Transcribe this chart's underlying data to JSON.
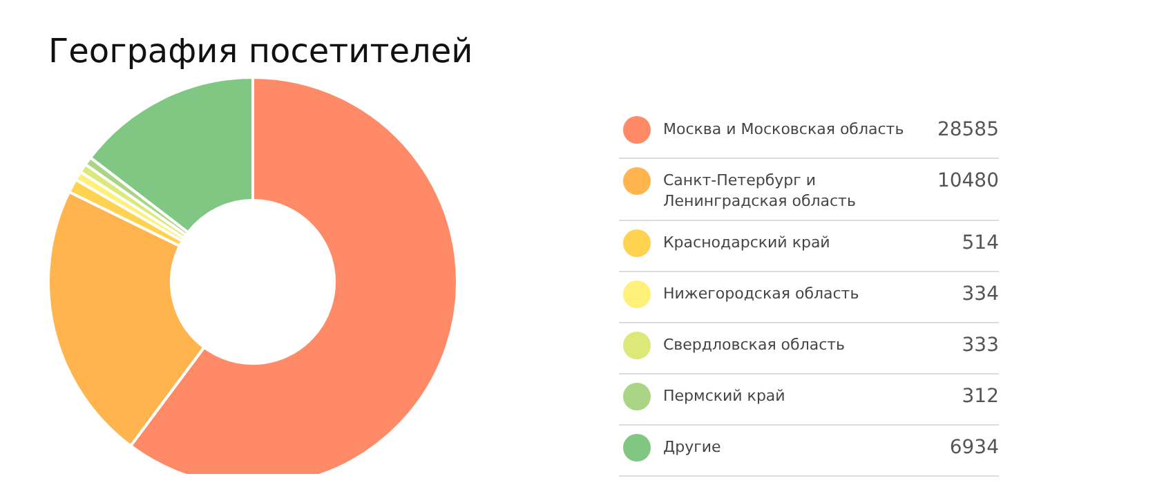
{
  "chart_data": {
    "type": "donut",
    "title": "География посетителей",
    "categories": [
      "Москва и Московская область",
      "Санкт-Петербург и Ленинградская область",
      "Краснодарский край",
      "Нижегородская область",
      "Свердловская область",
      "Пермский край",
      "Другие"
    ],
    "values": [
      28585,
      10480,
      514,
      334,
      333,
      312,
      6934
    ],
    "colors": [
      "#ff8a67",
      "#ffb44e",
      "#ffd24f",
      "#fff07a",
      "#dce878",
      "#aad584",
      "#80c784"
    ],
    "data_labels": true,
    "legend": "right"
  }
}
